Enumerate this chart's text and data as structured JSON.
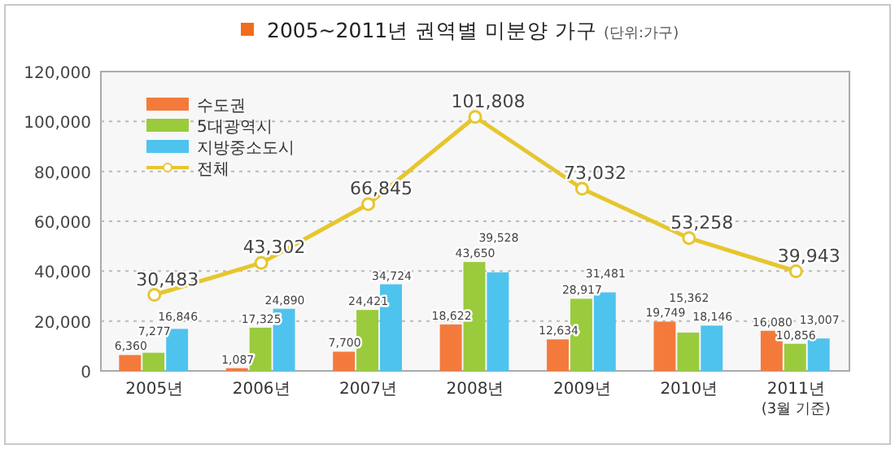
{
  "chart_data": {
    "type": "bar",
    "title": "2005~2011년 권역별 미분양 가구",
    "subtitle": "(단위:가구)",
    "categories": [
      "2005년",
      "2006년",
      "2007년",
      "2008년",
      "2009년",
      "2010년",
      "2011년 (3월 기준)"
    ],
    "series": [
      {
        "name": "수도권",
        "color": "#f47a3c",
        "values": [
          6360,
          1087,
          7700,
          18622,
          12634,
          19749,
          16080
        ],
        "value_labels": [
          "6,360",
          "1,087",
          "7,700",
          "18,622",
          "12,634",
          "19,749",
          "16,080"
        ]
      },
      {
        "name": "5대광역시",
        "color": "#9acb3c",
        "values": [
          7277,
          17325,
          24421,
          43650,
          28917,
          15362,
          10856
        ],
        "value_labels": [
          "7,277",
          "17,325",
          "24,421",
          "43,650",
          "28,917",
          "15,362",
          "10,856"
        ]
      },
      {
        "name": "지방중소도시",
        "color": "#4ec3ee",
        "values": [
          16846,
          24890,
          34724,
          39528,
          31481,
          18146,
          13007
        ],
        "value_labels": [
          "16,846",
          "24,890",
          "34,724",
          "39,528",
          "31,481",
          "18,146",
          "13,007"
        ]
      },
      {
        "name": "전체",
        "type": "line",
        "color": "#e6c62e",
        "marker": "circle",
        "values": [
          30483,
          43302,
          66845,
          101808,
          73032,
          53258,
          39943
        ],
        "value_labels": [
          "30,483",
          "43,302",
          "66,845",
          "101,808",
          "73,032",
          "53,258",
          "39,943"
        ]
      }
    ],
    "ylim": [
      0,
      120000
    ],
    "yticks": [
      {
        "value": 0,
        "label": "0"
      },
      {
        "value": 20000,
        "label": "20,000"
      },
      {
        "value": 40000,
        "label": "40,000"
      },
      {
        "value": 60000,
        "label": "60,000"
      },
      {
        "value": 80000,
        "label": "80,000"
      },
      {
        "value": 100000,
        "label": "100,000"
      },
      {
        "value": 120000,
        "label": "120,000"
      }
    ],
    "grid": "y",
    "legend": "top left"
  }
}
